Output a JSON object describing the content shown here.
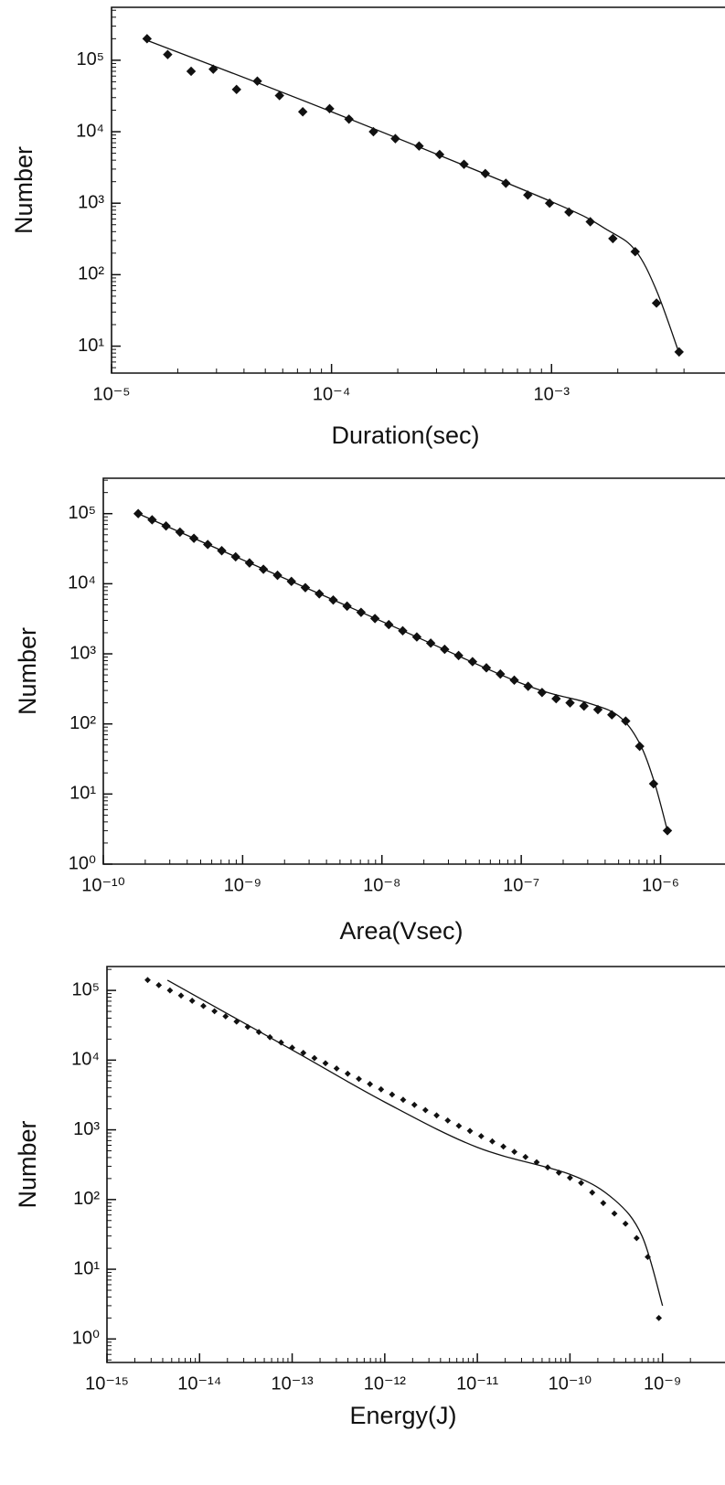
{
  "chart_data": [
    {
      "type": "scatter",
      "log_x": true,
      "log_y": true,
      "color": "#111111",
      "marker": "diamond",
      "x_label": "Duration(sec)",
      "y_label": "Number",
      "x": [
        1.45e-05,
        1.8e-05,
        2.3e-05,
        2.9e-05,
        3.7e-05,
        4.6e-05,
        5.8e-05,
        7.4e-05,
        9.8e-05,
        0.00012,
        0.000155,
        0.000195,
        0.00025,
        0.00031,
        0.0004,
        0.0005,
        0.00062,
        0.00078,
        0.00098,
        0.0012,
        0.0015,
        0.0019,
        0.0024,
        0.003,
        0.0038
      ],
      "values": [
        200000,
        120000,
        70000,
        75000,
        39000,
        51000,
        32000,
        19000,
        21000,
        15000,
        10000,
        8000,
        6300,
        4800,
        3500,
        2600,
        1900,
        1300,
        1000,
        750,
        550,
        320,
        210,
        40,
        8.3
      ],
      "fit": {
        "x": [
          1.45e-05,
          0.0001,
          0.001,
          0.0018,
          0.0024,
          0.003,
          0.0038
        ],
        "y": [
          190000,
          19000,
          1050,
          420,
          220,
          60,
          8
        ]
      },
      "xlim": [
        1e-05,
        0.0047
      ],
      "ylim": [
        4.2,
        550000
      ],
      "xticks": [
        {
          "value": 1e-05,
          "label": "10⁻⁵"
        },
        {
          "value": 0.0001,
          "label": "10⁻⁴"
        },
        {
          "value": 0.001,
          "label": "10⁻³"
        }
      ],
      "yticks": [
        {
          "value": 10,
          "label": "10¹"
        },
        {
          "value": 100,
          "label": "10²"
        },
        {
          "value": 1000,
          "label": "10³"
        },
        {
          "value": 10000,
          "label": "10⁴"
        },
        {
          "value": 100000,
          "label": "10⁵"
        }
      ]
    },
    {
      "type": "scatter",
      "log_x": true,
      "log_y": true,
      "color": "#111111",
      "marker": "diamond",
      "x_label": "Area(Vsec)",
      "y_label": "Number",
      "x": [
        1.78e-10,
        2.24e-10,
        2.82e-10,
        3.55e-10,
        4.47e-10,
        5.62e-10,
        7.08e-10,
        8.91e-10,
        1.12e-09,
        1.41e-09,
        1.78e-09,
        2.24e-09,
        2.82e-09,
        3.55e-09,
        4.47e-09,
        5.62e-09,
        7.08e-09,
        8.91e-09,
        1.12e-08,
        1.41e-08,
        1.78e-08,
        2.24e-08,
        2.82e-08,
        3.55e-08,
        4.47e-08,
        5.62e-08,
        7.08e-08,
        8.91e-08,
        1.12e-07,
        1.41e-07,
        1.78e-07,
        2.24e-07,
        2.82e-07,
        3.55e-07,
        4.47e-07,
        5.62e-07,
        7.08e-07,
        8.91e-07,
        1.12e-06
      ],
      "values": [
        100000,
        81700,
        66700,
        54500,
        44500,
        36300,
        29600,
        24200,
        19800,
        16100,
        13200,
        10800,
        8790,
        7180,
        5860,
        4790,
        3910,
        3190,
        2610,
        2130,
        1740,
        1420,
        1160,
        946,
        773,
        631,
        515,
        421,
        344,
        281,
        229,
        200,
        180,
        160,
        135,
        110,
        48,
        14,
        3
      ],
      "fit": {
        "x": [
          1.78e-10,
          1e-08,
          1e-07,
          3e-07,
          5e-07,
          7e-07,
          9e-07,
          1.12e-06
        ],
        "y": [
          100000,
          2900,
          380,
          200,
          130,
          55,
          15,
          3
        ]
      },
      "xlim": [
        1e-10,
        1.9e-06
      ],
      "ylim": [
        1,
        320000
      ],
      "xticks": [
        {
          "value": 1e-10,
          "label": "10⁻¹⁰"
        },
        {
          "value": 1e-09,
          "label": "10⁻⁹"
        },
        {
          "value": 1e-08,
          "label": "10⁻⁸"
        },
        {
          "value": 1e-07,
          "label": "10⁻⁷"
        },
        {
          "value": 1e-06,
          "label": "10⁻⁶"
        }
      ],
      "yticks": [
        {
          "value": 1,
          "label": "10⁰"
        },
        {
          "value": 10,
          "label": "10¹"
        },
        {
          "value": 100,
          "label": "10²"
        },
        {
          "value": 1000,
          "label": "10³"
        },
        {
          "value": 10000,
          "label": "10⁴"
        },
        {
          "value": 100000,
          "label": "10⁵"
        }
      ]
    },
    {
      "type": "scatter",
      "log_x": true,
      "log_y": true,
      "color": "#111111",
      "marker": "small-diamond",
      "x_label": "Energy(J)",
      "y_label": "Number",
      "x": [
        2.75e-15,
        3.63e-15,
        4.79e-15,
        6.31e-15,
        8.32e-15,
        1.1e-14,
        1.45e-14,
        1.91e-14,
        2.51e-14,
        3.31e-14,
        4.37e-14,
        5.75e-14,
        7.59e-14,
        1e-13,
        1.32e-13,
        1.74e-13,
        2.29e-13,
        3.02e-13,
        3.98e-13,
        5.25e-13,
        6.92e-13,
        9.12e-13,
        1.2e-12,
        1.58e-12,
        2.09e-12,
        2.75e-12,
        3.63e-12,
        4.79e-12,
        6.31e-12,
        8.32e-12,
        1.1e-11,
        1.45e-11,
        1.91e-11,
        2.51e-11,
        3.31e-11,
        4.37e-11,
        5.75e-11,
        7.59e-11,
        1e-10,
        1.32e-10,
        1.74e-10,
        2.29e-10,
        3.02e-10,
        3.98e-10,
        5.25e-10,
        6.92e-10,
        9.12e-10
      ],
      "values": [
        141000,
        119000,
        100000,
        84400,
        71000,
        59800,
        50300,
        42400,
        35700,
        30000,
        25300,
        21300,
        17900,
        15100,
        12700,
        10700,
        9020,
        7590,
        6390,
        5380,
        4530,
        3810,
        3210,
        2700,
        2280,
        1920,
        1610,
        1360,
        1140,
        964,
        811,
        683,
        575,
        484,
        408,
        343,
        289,
        243,
        205,
        173,
        126,
        89,
        63,
        45,
        28,
        15,
        2
      ],
      "fit": {
        "x": [
          4.5e-15,
          1e-13,
          1e-12,
          1e-11,
          1e-10,
          3e-10,
          6e-10,
          1e-09
        ],
        "y": [
          140000,
          14000,
          2500,
          560,
          230,
          100,
          30,
          3
        ]
      },
      "xlim": [
        1e-15,
        2.5e-09
      ],
      "ylim": [
        0.46,
        220000
      ],
      "xticks": [
        {
          "value": 1e-15,
          "label": "10⁻¹⁵"
        },
        {
          "value": 1e-14,
          "label": "10⁻¹⁴"
        },
        {
          "value": 1e-13,
          "label": "10⁻¹³"
        },
        {
          "value": 1e-12,
          "label": "10⁻¹²"
        },
        {
          "value": 1e-11,
          "label": "10⁻¹¹"
        },
        {
          "value": 1e-10,
          "label": "10⁻¹⁰"
        },
        {
          "value": 1e-09,
          "label": "10⁻⁹"
        }
      ],
      "yticks": [
        {
          "value": 1,
          "label": "10⁰"
        },
        {
          "value": 10,
          "label": "10¹"
        },
        {
          "value": 100,
          "label": "10²"
        },
        {
          "value": 1000,
          "label": "10³"
        },
        {
          "value": 10000,
          "label": "10⁴"
        },
        {
          "value": 100000,
          "label": "10⁵"
        }
      ]
    }
  ]
}
